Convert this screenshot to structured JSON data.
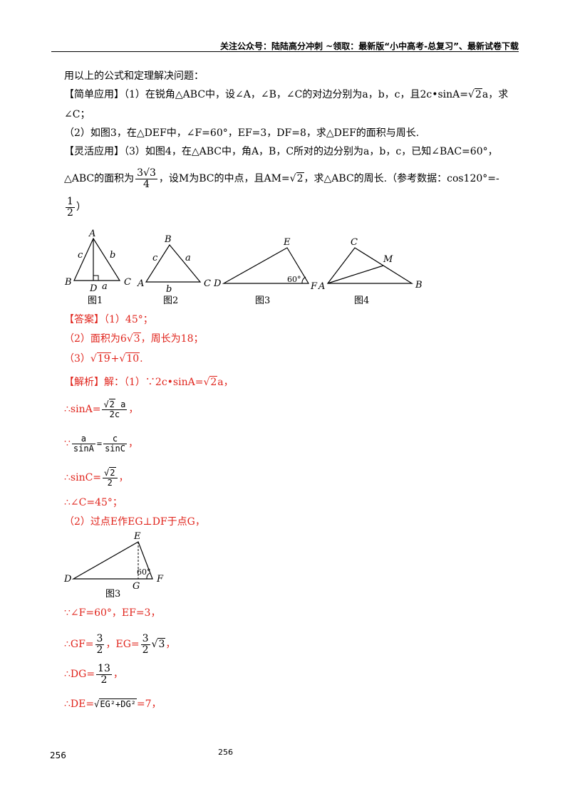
{
  "header": {
    "text": "关注公众号：陆陆高分冲刺 ~领取：最新版“小中高考-总复习”、最新试卷下载"
  },
  "intro": "用以上的公式和定理解决问题：",
  "simple": {
    "tag": "【简单应用】",
    "q1": "（1）在锐角△ABC中，设∠A，∠B，∠C的对边分别为a，b，c，且2c•sinA=",
    "q1_tail": "a，求",
    "q1_line2": "∠C；",
    "q2": "（2）如图3，在△DEF中，∠F=60°，EF=3，DF=8，求△DEF的面积与周长."
  },
  "flexible": {
    "tag": "【灵活应用】",
    "q3": "（3）如图4，在△ABC中，角A，B，C所对的边分别为a，b，c，已知∠BAC=60°，",
    "q3_line2_pre": "△ABC的面积为",
    "area_num": "3√3",
    "area_den": "4",
    "q3_line2_post": "，设M为BC的中点，且AM=",
    "q3_line2_tail": "，求△ABC的周长.（参考数据：cos120°=-",
    "ref_num": "1",
    "ref_den": "2",
    "ref_close": "）"
  },
  "figures": {
    "fig1": {
      "caption": "图1",
      "A": "A",
      "B": "B",
      "C": "C",
      "D": "D",
      "a": "a",
      "b": "b",
      "c": "c"
    },
    "fig2": {
      "caption": "图2",
      "A": "A",
      "B": "B",
      "C": "C",
      "a": "a",
      "b": "b",
      "c": "c"
    },
    "fig3": {
      "caption": "图3",
      "D": "D",
      "E": "E",
      "F": "F",
      "angle": "60°"
    },
    "fig4": {
      "caption": "图4",
      "A": "A",
      "B": "B",
      "C": "C",
      "M": "M"
    },
    "fig5": {
      "caption": "图3",
      "D": "D",
      "E": "E",
      "F": "F",
      "G": "G",
      "angle": "60°"
    }
  },
  "answer": {
    "tag": "【答案】",
    "a1": "（1）45°；",
    "a2_pre": "（2）面积为6",
    "a2_rad": "3",
    "a2_post": "，周长为18；",
    "a3_pre": "（3）",
    "a3_rad1": "19",
    "a3_plus": "+",
    "a3_rad2": "10",
    "a3_post": "."
  },
  "analysis": {
    "tag": "【解析】",
    "s1_pre": "解：（1）∵2c•sinA=",
    "s1_post": "a，",
    "sinA_pre": "∴sinA=",
    "sinA_num": "a",
    "sinA_den": "2c",
    "sinA_post": "，",
    "law_pre": "∵",
    "law_n1": "a",
    "law_d1": "sinA",
    "law_eq": "=",
    "law_n2": "c",
    "law_d2": "sinC",
    "law_post": "，",
    "sinC_pre": "∴sinC=",
    "sinC_den": "2",
    "sinC_post": "，",
    "angC": "∴∠C=45°；",
    "p2": "（2）过点E作EG⊥DF于点G，",
    "given": "∵∠F=60°，EF=3，",
    "gf_pre": "∴GF=",
    "gf_num": "3",
    "gf_den": "2",
    "eg_pre": "，EG=",
    "eg_num": "3",
    "eg_den": "2",
    "eg_rad": "3",
    "eg_post": "，",
    "dg_pre": "∴DG=",
    "dg_num": "13",
    "dg_den": "2",
    "dg_post": "，",
    "de_pre": "∴DE=",
    "de_rad": "EG²+DG²",
    "de_post": "=7，"
  },
  "footer": {
    "left": "256",
    "center": "256"
  }
}
